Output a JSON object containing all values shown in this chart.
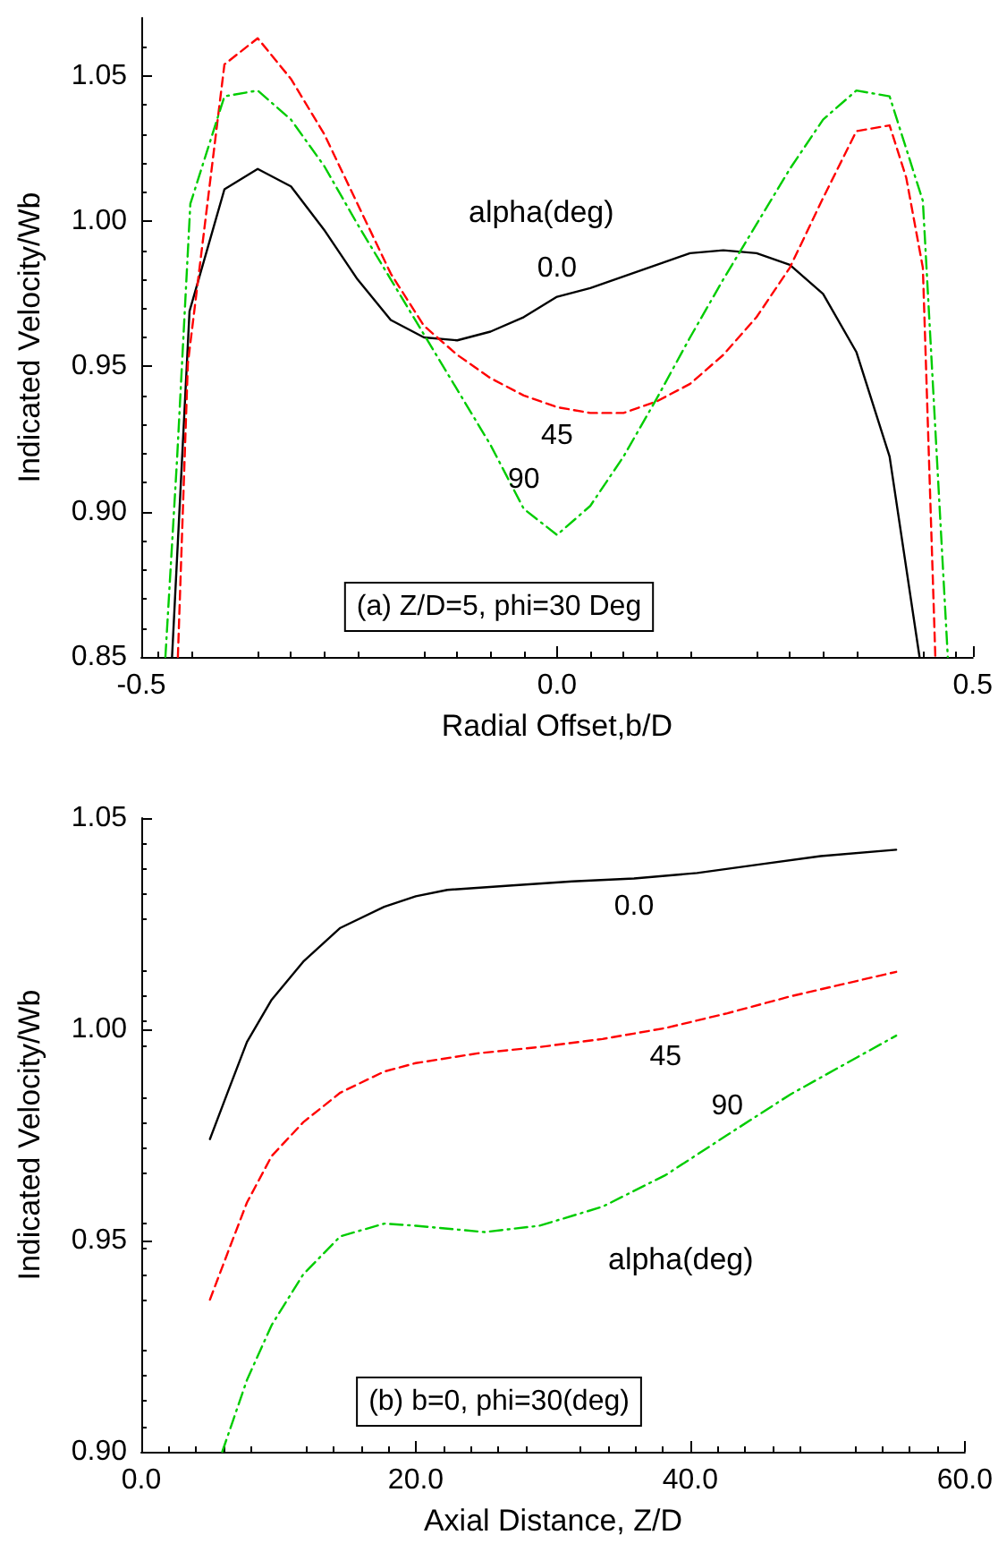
{
  "chart_data": [
    {
      "type": "line",
      "xlabel": "Radial Offset,b/D",
      "ylabel": "Indicated Velocity/Wb",
      "xlim": [
        -0.5,
        0.5
      ],
      "xticks": [
        -0.5,
        {
          "value": 0,
          "label": "0.0"
        },
        0.5
      ],
      "ylim": [
        0.85,
        1.07
      ],
      "yticks": [
        {
          "value": 0.85,
          "label": "0.85"
        },
        {
          "value": 0.9,
          "label": "0.90"
        },
        {
          "value": 0.95,
          "label": "0.95"
        },
        {
          "value": 1.0,
          "label": "1.00"
        },
        {
          "value": 1.05,
          "label": "1.05"
        }
      ],
      "grid": false,
      "legend": false,
      "marker": "none",
      "annotations": [
        "alpha(deg)",
        "(a) Z/D=5, phi=30 Deg"
      ],
      "series": [
        {
          "name": "0.0",
          "color": "#000000",
          "line_style": "solid",
          "x": [
            -0.463,
            -0.442,
            -0.4,
            -0.36,
            -0.32,
            -0.28,
            -0.24,
            -0.2,
            -0.16,
            -0.12,
            -0.08,
            -0.04,
            0,
            0.04,
            0.08,
            0.12,
            0.16,
            0.2,
            0.24,
            0.28,
            0.32,
            0.36,
            0.4,
            0.436
          ],
          "values": [
            0.85,
            0.969,
            1.011,
            1.018,
            1.012,
            0.997,
            0.98,
            0.966,
            0.96,
            0.959,
            0.962,
            0.967,
            0.974,
            0.977,
            0.981,
            0.985,
            0.989,
            0.99,
            0.989,
            0.985,
            0.975,
            0.955,
            0.919,
            0.85
          ]
        },
        {
          "name": "45",
          "color": "#ff0000",
          "line_style": "dashed",
          "x": [
            -0.456,
            -0.444,
            -0.4,
            -0.36,
            -0.32,
            -0.28,
            -0.24,
            -0.2,
            -0.16,
            -0.12,
            -0.08,
            -0.04,
            0,
            0.04,
            0.08,
            0.12,
            0.16,
            0.2,
            0.24,
            0.28,
            0.32,
            0.36,
            0.4,
            0.42,
            0.44,
            0.455
          ],
          "values": [
            0.85,
            0.951,
            1.054,
            1.063,
            1.049,
            1.03,
            1.006,
            0.982,
            0.964,
            0.954,
            0.946,
            0.94,
            0.936,
            0.934,
            0.934,
            0.938,
            0.944,
            0.954,
            0.967,
            0.984,
            1.008,
            1.031,
            1.033,
            1.015,
            0.984,
            0.85
          ]
        },
        {
          "name": "90",
          "color": "#00cc00",
          "line_style": "dashdot",
          "x": [
            -0.471,
            -0.457,
            -0.441,
            -0.4,
            -0.36,
            -0.32,
            -0.28,
            -0.24,
            -0.2,
            -0.16,
            -0.12,
            -0.08,
            -0.04,
            0,
            0.04,
            0.08,
            0.12,
            0.16,
            0.2,
            0.24,
            0.28,
            0.32,
            0.36,
            0.4,
            0.44,
            0.47
          ],
          "values": [
            0.85,
            0.918,
            1.006,
            1.043,
            1.045,
            1.035,
            1.019,
            0.999,
            0.98,
            0.961,
            0.942,
            0.923,
            0.901,
            0.892,
            0.902,
            0.919,
            0.939,
            0.96,
            0.98,
            0.999,
            1.018,
            1.035,
            1.045,
            1.043,
            1.007,
            0.85
          ]
        }
      ]
    },
    {
      "type": "line",
      "xlabel": "Axial Distance, Z/D",
      "ylabel": "Indicated Velocity/Wb",
      "xlim": [
        0,
        60
      ],
      "xticks": [
        {
          "value": 0,
          "label": "0.0"
        },
        {
          "value": 20,
          "label": "20.0"
        },
        {
          "value": 40,
          "label": "40.0"
        },
        {
          "value": 60,
          "label": "60.0"
        }
      ],
      "ylim": [
        0.9,
        1.05
      ],
      "yticks": [
        {
          "value": 0.9,
          "label": "0.90"
        },
        {
          "value": 0.95,
          "label": "0.95"
        },
        {
          "value": 1.0,
          "label": "1.00"
        },
        {
          "value": 1.05,
          "label": "1.05"
        }
      ],
      "grid": false,
      "legend": false,
      "marker": "none",
      "annotations": [
        "alpha(deg)",
        "(b) b=0, phi=30(deg)"
      ],
      "series": [
        {
          "name": "0.0",
          "color": "#000000",
          "line_style": "solid",
          "x": [
            5,
            6.4,
            7.7,
            9.5,
            11.8,
            14.5,
            17.7,
            20,
            22.3,
            26.8,
            31.4,
            35.9,
            40.5,
            45,
            49.5,
            55
          ],
          "values": [
            0.974,
            0.986,
            0.997,
            1.007,
            1.016,
            1.024,
            1.029,
            1.0315,
            1.033,
            1.034,
            1.035,
            1.0357,
            1.037,
            1.039,
            1.041,
            1.0425
          ]
        },
        {
          "name": "45",
          "color": "#ff0000",
          "line_style": "dashed",
          "x": [
            5,
            6.4,
            7.7,
            9.5,
            11.8,
            14.5,
            17.7,
            20,
            24.5,
            29,
            33.6,
            38.2,
            42.7,
            47.3,
            55
          ],
          "values": [
            0.936,
            0.948,
            0.959,
            0.97,
            0.978,
            0.985,
            0.99,
            0.992,
            0.9943,
            0.9958,
            0.9977,
            1.0003,
            1.0038,
            1.0078,
            1.0136
          ]
        },
        {
          "name": "90",
          "color": "#00cc00",
          "line_style": "dashdot",
          "x": [
            5.9,
            7.7,
            9.5,
            11.8,
            14.5,
            17.7,
            20,
            25,
            29,
            33.6,
            38.2,
            42.7,
            47.3,
            55
          ],
          "values": [
            0.9,
            0.917,
            0.93,
            0.942,
            0.951,
            0.954,
            0.9535,
            0.952,
            0.9535,
            0.958,
            0.9655,
            0.975,
            0.9846,
            0.9985
          ]
        }
      ]
    }
  ]
}
